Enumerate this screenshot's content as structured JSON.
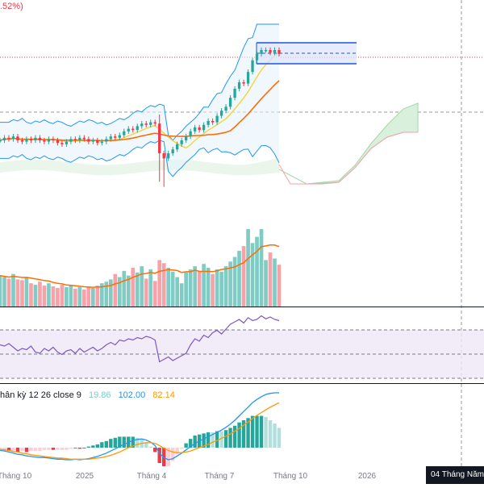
{
  "header": {
    "change_pct": ".52%)"
  },
  "macd": {
    "label": "hân kỳ 12 26 close 9",
    "histogram": "19.86",
    "macd_value": "102.00",
    "signal_value": "82.14",
    "colors": {
      "histogram": "#80cbc4",
      "macd": "#2196f3",
      "signal": "#ff9800"
    }
  },
  "xaxis": {
    "ticks": [
      "Tháng 10",
      "2025",
      "Tháng 4",
      "Tháng 7",
      "Tháng 10",
      "2026"
    ]
  },
  "crosshair": {
    "date_badge": "04 Tháng Năm"
  },
  "colors": {
    "up": "#26a69a",
    "down": "#f23645",
    "vol_up": "#80cbc4",
    "vol_down": "#f7a1a9",
    "rsi": "#7e57c2",
    "rsi_band": "#ede7f6",
    "ma_fast": "#f5d33d",
    "ma_slow": "#ff6d00",
    "bb": "#2196f3",
    "range_box": "#1e53e5"
  },
  "chart_data": [
    {
      "type": "candlestick",
      "title": "",
      "x_ticks": [
        "Tháng 10",
        "2025",
        "Tháng 4",
        "Tháng 7",
        "Tháng 10",
        "2026"
      ],
      "close": [
        0.3,
        0.32,
        0.31,
        0.33,
        0.3,
        0.29,
        0.31,
        0.3,
        0.32,
        0.3,
        0.29,
        0.31,
        0.3,
        0.28,
        0.27,
        0.29,
        0.31,
        0.3,
        0.32,
        0.31,
        0.29,
        0.3,
        0.28,
        0.29,
        0.31,
        0.33,
        0.32,
        0.34,
        0.37,
        0.39,
        0.38,
        0.41,
        0.43,
        0.42,
        0.44,
        0.43,
        0.2,
        0.16,
        0.2,
        0.23,
        0.27,
        0.3,
        0.33,
        0.37,
        0.4,
        0.38,
        0.42,
        0.45,
        0.44,
        0.49,
        0.53,
        0.56,
        0.63,
        0.7,
        0.75,
        0.74,
        0.83,
        0.92,
        0.97,
        1.0,
        1.0,
        0.98,
        1.0,
        0.97
      ],
      "volume": [
        0.4,
        0.38,
        0.36,
        0.42,
        0.35,
        0.34,
        0.38,
        0.3,
        0.28,
        0.32,
        0.27,
        0.3,
        0.26,
        0.24,
        0.28,
        0.25,
        0.27,
        0.23,
        0.25,
        0.22,
        0.26,
        0.24,
        0.27,
        0.3,
        0.32,
        0.35,
        0.42,
        0.38,
        0.46,
        0.4,
        0.5,
        0.44,
        0.52,
        0.36,
        0.48,
        0.33,
        0.6,
        0.56,
        0.5,
        0.45,
        0.38,
        0.3,
        0.44,
        0.48,
        0.52,
        0.46,
        0.55,
        0.5,
        0.42,
        0.48,
        0.45,
        0.52,
        0.58,
        0.64,
        0.72,
        0.78,
        1.0,
        0.82,
        0.9,
        1.0,
        0.6,
        0.7,
        0.62,
        0.54
      ],
      "rsi": [
        0.5,
        0.48,
        0.52,
        0.46,
        0.4,
        0.44,
        0.42,
        0.48,
        0.38,
        0.36,
        0.44,
        0.4,
        0.46,
        0.38,
        0.34,
        0.4,
        0.42,
        0.36,
        0.44,
        0.38,
        0.42,
        0.46,
        0.4,
        0.44,
        0.5,
        0.54,
        0.5,
        0.58,
        0.56,
        0.6,
        0.58,
        0.62,
        0.6,
        0.64,
        0.62,
        0.58,
        0.22,
        0.26,
        0.3,
        0.24,
        0.28,
        0.32,
        0.36,
        0.5,
        0.6,
        0.56,
        0.66,
        0.62,
        0.7,
        0.74,
        0.68,
        0.76,
        0.84,
        0.88,
        0.92,
        0.86,
        0.95,
        0.9,
        0.92,
        0.98,
        0.93,
        0.96,
        0.92,
        0.9
      ],
      "macd_line": [
        -0.05,
        -0.06,
        -0.08,
        -0.1,
        -0.12,
        -0.13,
        -0.15,
        -0.16,
        -0.17,
        -0.18,
        -0.18,
        -0.19,
        -0.2,
        -0.21,
        -0.21,
        -0.22,
        -0.22,
        -0.21,
        -0.22,
        -0.21,
        -0.2,
        -0.18,
        -0.16,
        -0.13,
        -0.1,
        -0.06,
        -0.02,
        0.02,
        0.06,
        0.1,
        0.13,
        0.15,
        0.16,
        0.14,
        0.1,
        0.04,
        -0.1,
        -0.18,
        -0.22,
        -0.2,
        -0.15,
        -0.1,
        -0.04,
        0.02,
        0.08,
        0.12,
        0.16,
        0.2,
        0.24,
        0.28,
        0.32,
        0.37,
        0.43,
        0.5,
        0.58,
        0.66,
        0.74,
        0.82,
        0.88,
        0.93,
        0.97,
        0.99,
        1.0,
        1.0
      ],
      "signal_line": [
        -0.03,
        -0.04,
        -0.05,
        -0.07,
        -0.08,
        -0.1,
        -0.11,
        -0.13,
        -0.14,
        -0.15,
        -0.16,
        -0.17,
        -0.18,
        -0.19,
        -0.19,
        -0.2,
        -0.21,
        -0.21,
        -0.21,
        -0.21,
        -0.21,
        -0.2,
        -0.19,
        -0.18,
        -0.16,
        -0.14,
        -0.11,
        -0.08,
        -0.04,
        0.0,
        0.03,
        0.06,
        0.08,
        0.09,
        0.09,
        0.08,
        0.04,
        -0.01,
        -0.05,
        -0.08,
        -0.09,
        -0.09,
        -0.08,
        -0.06,
        -0.03,
        0.0,
        0.03,
        0.06,
        0.1,
        0.13,
        0.17,
        0.21,
        0.25,
        0.3,
        0.35,
        0.41,
        0.47,
        0.53,
        0.59,
        0.64,
        0.69,
        0.74,
        0.78,
        0.82
      ]
    }
  ]
}
